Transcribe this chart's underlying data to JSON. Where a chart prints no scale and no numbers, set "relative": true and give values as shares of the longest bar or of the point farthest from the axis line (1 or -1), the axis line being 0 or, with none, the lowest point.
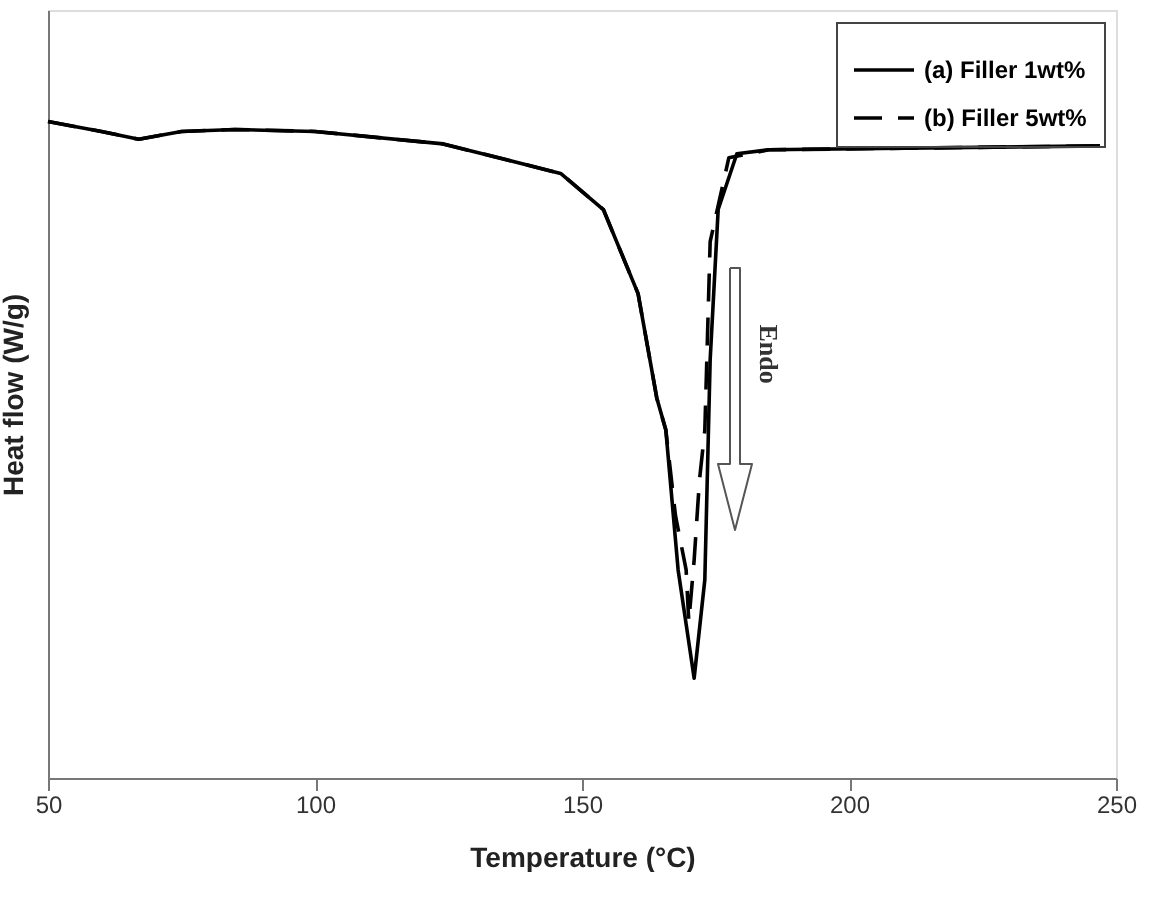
{
  "chart_data": {
    "type": "line",
    "xlabel": "Temperature (°C)",
    "ylabel": "Heat flow (W/g)",
    "xlim": [
      50,
      250
    ],
    "xticks": [
      50,
      100,
      150,
      200,
      250
    ],
    "relative": true,
    "legend": "top right",
    "series": [
      {
        "name": "(a) Filler 1wt%",
        "color": "#000000",
        "line_style": "solid",
        "x": [
          50,
          60,
          67,
          75,
          85,
          100,
          124,
          146,
          154,
          160.5,
          164,
          165.7,
          168,
          171,
          173,
          174,
          175.5,
          179,
          185,
          247
        ],
        "values": [
          1.0,
          0.985,
          0.973,
          0.985,
          0.988,
          0.985,
          0.966,
          0.921,
          0.866,
          0.738,
          0.579,
          0.53,
          0.317,
          0.152,
          0.302,
          0.637,
          0.866,
          0.951,
          0.957,
          0.963
        ]
      },
      {
        "name": "(b) Filler 5wt%",
        "color": "#000000",
        "line_style": "dashed",
        "x": [
          50,
          60,
          67,
          75,
          85,
          100,
          124,
          146,
          154,
          160.5,
          164,
          165.7,
          167.5,
          169.5,
          170,
          171,
          172,
          173,
          174,
          177.5,
          185,
          247
        ],
        "values": [
          1.0,
          0.985,
          0.973,
          0.985,
          0.988,
          0.985,
          0.966,
          0.921,
          0.866,
          0.738,
          0.579,
          0.53,
          0.4,
          0.317,
          0.238,
          0.332,
          0.454,
          0.53,
          0.817,
          0.945,
          0.957,
          0.963
        ]
      }
    ],
    "annotations": [
      "Endo"
    ]
  }
}
